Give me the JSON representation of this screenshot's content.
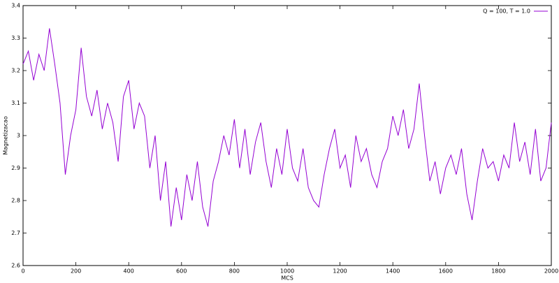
{
  "chart_data": {
    "type": "line",
    "xlabel": "MCS",
    "ylabel": "Magnetizacao",
    "xlim": [
      0,
      2000
    ],
    "ylim": [
      2.6,
      3.4
    ],
    "xticks": [
      0,
      200,
      400,
      600,
      800,
      1000,
      1200,
      1400,
      1600,
      1800,
      2000
    ],
    "yticks": [
      2.6,
      2.7,
      2.8,
      2.9,
      3,
      3.1,
      3.2,
      3.3,
      3.4
    ],
    "grid": false,
    "legend": "top-right",
    "x": [
      0,
      20,
      40,
      60,
      80,
      100,
      120,
      140,
      160,
      180,
      200,
      220,
      240,
      260,
      280,
      300,
      320,
      340,
      360,
      380,
      400,
      420,
      440,
      460,
      480,
      500,
      520,
      540,
      560,
      580,
      600,
      620,
      640,
      660,
      680,
      700,
      720,
      740,
      760,
      780,
      800,
      820,
      840,
      860,
      880,
      900,
      920,
      940,
      960,
      980,
      1000,
      1020,
      1040,
      1060,
      1080,
      1100,
      1120,
      1140,
      1160,
      1180,
      1200,
      1220,
      1240,
      1260,
      1280,
      1300,
      1320,
      1340,
      1360,
      1380,
      1400,
      1420,
      1440,
      1460,
      1480,
      1500,
      1520,
      1540,
      1560,
      1580,
      1600,
      1620,
      1640,
      1660,
      1680,
      1700,
      1720,
      1740,
      1760,
      1780,
      1800,
      1820,
      1840,
      1860,
      1880,
      1900,
      1920,
      1940,
      1960,
      1980,
      2000
    ],
    "series": [
      {
        "name": "Q = 100, T = 1.0",
        "color": "#9400d3",
        "values": [
          3.22,
          3.26,
          3.17,
          3.25,
          3.2,
          3.33,
          3.22,
          3.1,
          2.88,
          3.0,
          3.08,
          3.27,
          3.12,
          3.06,
          3.14,
          3.02,
          3.1,
          3.04,
          2.92,
          3.12,
          3.17,
          3.02,
          3.1,
          3.06,
          2.9,
          3.0,
          2.8,
          2.92,
          2.72,
          2.84,
          2.74,
          2.88,
          2.8,
          2.92,
          2.78,
          2.72,
          2.86,
          2.92,
          3.0,
          2.94,
          3.05,
          2.9,
          3.02,
          2.88,
          2.98,
          3.04,
          2.92,
          2.84,
          2.96,
          2.88,
          3.02,
          2.9,
          2.86,
          2.96,
          2.84,
          2.8,
          2.78,
          2.88,
          2.96,
          3.02,
          2.9,
          2.94,
          2.84,
          3.0,
          2.92,
          2.96,
          2.88,
          2.84,
          2.92,
          2.96,
          3.06,
          3.0,
          3.08,
          2.96,
          3.02,
          3.16,
          3.0,
          2.86,
          2.92,
          2.82,
          2.9,
          2.94,
          2.88,
          2.96,
          2.82,
          2.74,
          2.86,
          2.96,
          2.9,
          2.92,
          2.86,
          2.94,
          2.9,
          3.04,
          2.92,
          2.98,
          2.88,
          3.02,
          2.86,
          2.9,
          3.04
        ]
      }
    ]
  }
}
